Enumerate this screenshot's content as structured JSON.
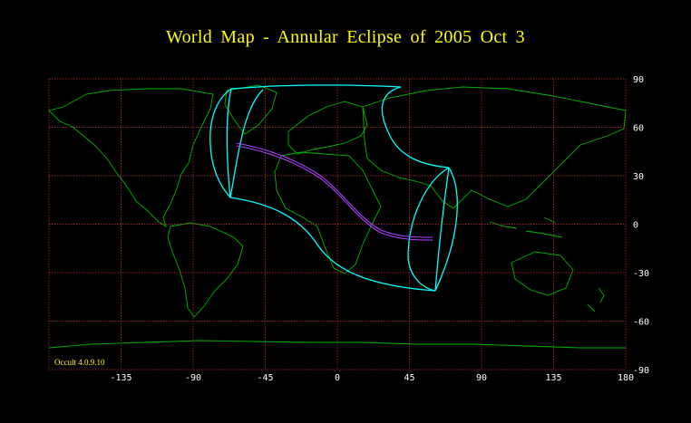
{
  "title": "World Map  -  Annular  Eclipse  of  2005 Oct  3",
  "software_label": "Occult 4.0.9.10",
  "axes": {
    "x_ticks": [
      "-135",
      "-90",
      "-45",
      "0",
      "45",
      "90",
      "135",
      "180"
    ],
    "y_ticks": [
      "90",
      "60",
      "30",
      "0",
      "-30",
      "-60",
      "-90"
    ]
  },
  "colors": {
    "background": "#000000",
    "title": "#ffff00",
    "grid": "#c83232",
    "coastline": "#00b400",
    "penumbra_limits": "#00ffff",
    "central_path": "#b040ff",
    "tick_labels": "#ffffff"
  }
}
